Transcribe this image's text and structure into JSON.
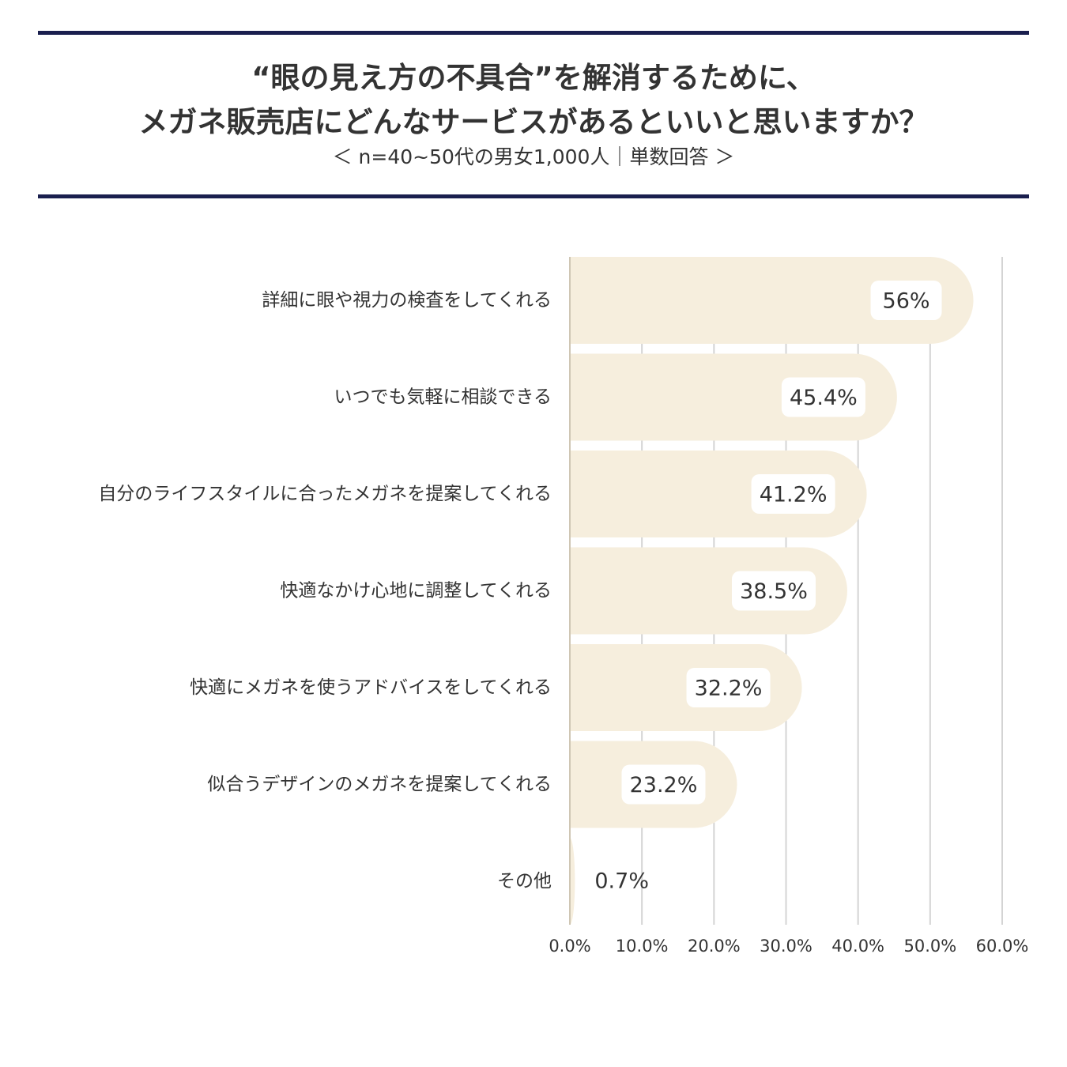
{
  "header": {
    "title_line1": "“眼の見え方の不具合”を解消するために、",
    "title_line2": "メガネ販売店にどんなサービスがあるといいと思いますか？",
    "subtitle": "＜ n=40~50代の男女1,000人｜単数回答 ＞"
  },
  "colors": {
    "rule": "#1a1f4e",
    "bar": "#f6eedd",
    "label_box": "#ffffff",
    "grid": "#d4d4d4",
    "text": "#333333"
  },
  "chart_data": {
    "type": "bar",
    "orientation": "horizontal",
    "categories": [
      "詳細に眼や視力の検査をしてくれる",
      "いつでも気軽に相談できる",
      "自分のライフスタイルに合ったメガネを提案してくれる",
      "快適なかけ心地に調整してくれる",
      "快適にメガネを使うアドバイスをしてくれる",
      "似合うデザインのメガネを提案してくれる",
      "その他"
    ],
    "values": [
      56,
      45.4,
      41.2,
      38.5,
      32.2,
      23.2,
      0.7
    ],
    "value_labels": [
      "56%",
      "45.4%",
      "41.2%",
      "38.5%",
      "32.2%",
      "23.2%",
      "0.7%"
    ],
    "x_ticks": [
      0,
      10,
      20,
      30,
      40,
      50,
      60
    ],
    "x_tick_labels": [
      "0.0%",
      "10.0%",
      "20.0%",
      "30.0%",
      "40.0%",
      "50.0%",
      "60.0%"
    ],
    "xlim": [
      0,
      60
    ],
    "grid": true,
    "legend": "none"
  }
}
